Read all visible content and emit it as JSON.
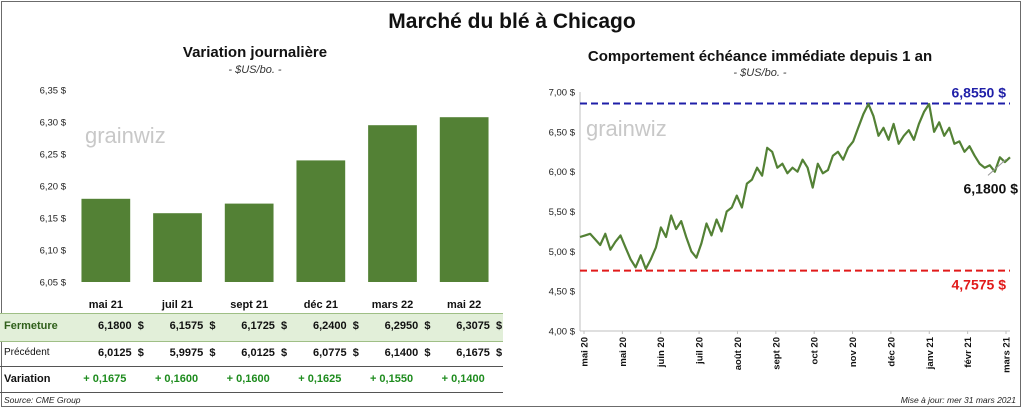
{
  "title": "Marché du blé à Chicago",
  "left_chart": {
    "title": "Variation  journalière",
    "subtitle": "- $US/bo. -",
    "watermark": "grainwiz"
  },
  "right_chart": {
    "title": "Comportement  échéance immédiate depuis 1 an",
    "subtitle": "- $US/bo. -",
    "watermark": "grainwiz",
    "max_label": "6,8550 $",
    "min_label": "4,7575 $",
    "last_label": "6,1800 $"
  },
  "table": {
    "row_labels": [
      "Fermeture",
      "Précédent",
      "Variation"
    ],
    "fermeture": [
      "6,1800  $",
      "6,1575  $",
      "6,1725  $",
      "6,2400  $",
      "6,2950  $",
      "6,3075  $"
    ],
    "precedent": [
      "6,0125  $",
      "5,9975  $",
      "6,0125  $",
      "6,0775  $",
      "6,1400  $",
      "6,1675  $"
    ],
    "variation": [
      "+ 0,1675",
      "+ 0,1600",
      "+ 0,1600",
      "+ 0,1625",
      "+ 0,1550",
      "+ 0,1400"
    ]
  },
  "footer": {
    "source": "Source: CME Group",
    "updated": "Mise à jour: mer 31 mars 2021"
  },
  "colors": {
    "bar": "#538135",
    "line": "#538135",
    "max_line": "#1f1fa8",
    "min_line": "#e11a1a",
    "variation_text": "#1e8c1e"
  },
  "chart_data": [
    {
      "type": "bar",
      "title": "Variation  journalière",
      "categories": [
        "mai 21",
        "juil 21",
        "sept 21",
        "déc 21",
        "mars 22",
        "mai 22"
      ],
      "values": [
        6.18,
        6.1575,
        6.1725,
        6.24,
        6.295,
        6.3075
      ],
      "ylim": [
        6.05,
        6.35
      ],
      "yticks": [
        "6,05 $",
        "6,10 $",
        "6,15 $",
        "6,20 $",
        "6,25 $",
        "6,30 $",
        "6,35 $"
      ],
      "ytick_values": [
        6.05,
        6.1,
        6.15,
        6.2,
        6.25,
        6.3,
        6.35
      ],
      "grid": false
    },
    {
      "type": "line",
      "title": "Comportement  échéance immédiate depuis 1 an",
      "ylim": [
        4.0,
        7.0
      ],
      "yticks": [
        "4,00 $",
        "4,50 $",
        "5,00 $",
        "5,50 $",
        "6,00 $",
        "6,50 $",
        "7,00 $"
      ],
      "ytick_values": [
        4.0,
        4.5,
        5.0,
        5.5,
        6.0,
        6.5,
        7.0
      ],
      "xticks": [
        "mai 20",
        "mai 20",
        "juin 20",
        "juil 20",
        "août 20",
        "sept 20",
        "oct 20",
        "nov 20",
        "déc 20",
        "janv 21",
        "févr 21",
        "mars 21"
      ],
      "hlines": [
        {
          "value": 6.855,
          "label": "6,8550 $"
        },
        {
          "value": 4.7575,
          "label": "4,7575 $"
        }
      ],
      "x": [
        0,
        3,
        6,
        9,
        12,
        15,
        18,
        21,
        24,
        27,
        30,
        33,
        36,
        39,
        42,
        45,
        48,
        51,
        54,
        57,
        60,
        63,
        66,
        69,
        72,
        75,
        78,
        81,
        84,
        87,
        90,
        93,
        96,
        99,
        102,
        105,
        108,
        111,
        114,
        117,
        120,
        123,
        126,
        129,
        132,
        135,
        138,
        141,
        144,
        147,
        150,
        153,
        156,
        159,
        162,
        165,
        168,
        171,
        174,
        177,
        180,
        183,
        186,
        189,
        192,
        195,
        198,
        201,
        204,
        207,
        210,
        213,
        216,
        219,
        222,
        225,
        228,
        231,
        234,
        237,
        240,
        243,
        246,
        249,
        252,
        255
      ],
      "y": [
        5.18,
        5.2,
        5.22,
        5.15,
        5.08,
        5.22,
        5.02,
        5.12,
        5.2,
        5.05,
        4.9,
        4.8,
        4.95,
        4.78,
        4.9,
        5.05,
        5.3,
        5.18,
        5.45,
        5.28,
        5.38,
        5.18,
        5.0,
        4.92,
        5.1,
        5.35,
        5.2,
        5.4,
        5.25,
        5.5,
        5.55,
        5.7,
        5.55,
        5.85,
        5.9,
        6.05,
        5.95,
        6.3,
        6.25,
        6.05,
        6.1,
        5.98,
        6.05,
        6.0,
        6.15,
        6.05,
        5.8,
        6.1,
        5.98,
        6.02,
        6.2,
        6.25,
        6.15,
        6.3,
        6.38,
        6.55,
        6.72,
        6.85,
        6.7,
        6.45,
        6.55,
        6.4,
        6.6,
        6.35,
        6.45,
        6.52,
        6.4,
        6.6,
        6.75,
        6.85,
        6.5,
        6.62,
        6.45,
        6.55,
        6.35,
        6.38,
        6.25,
        6.32,
        6.2,
        6.1,
        6.05,
        6.08,
        6.0,
        6.18,
        6.12,
        6.18
      ]
    }
  ]
}
